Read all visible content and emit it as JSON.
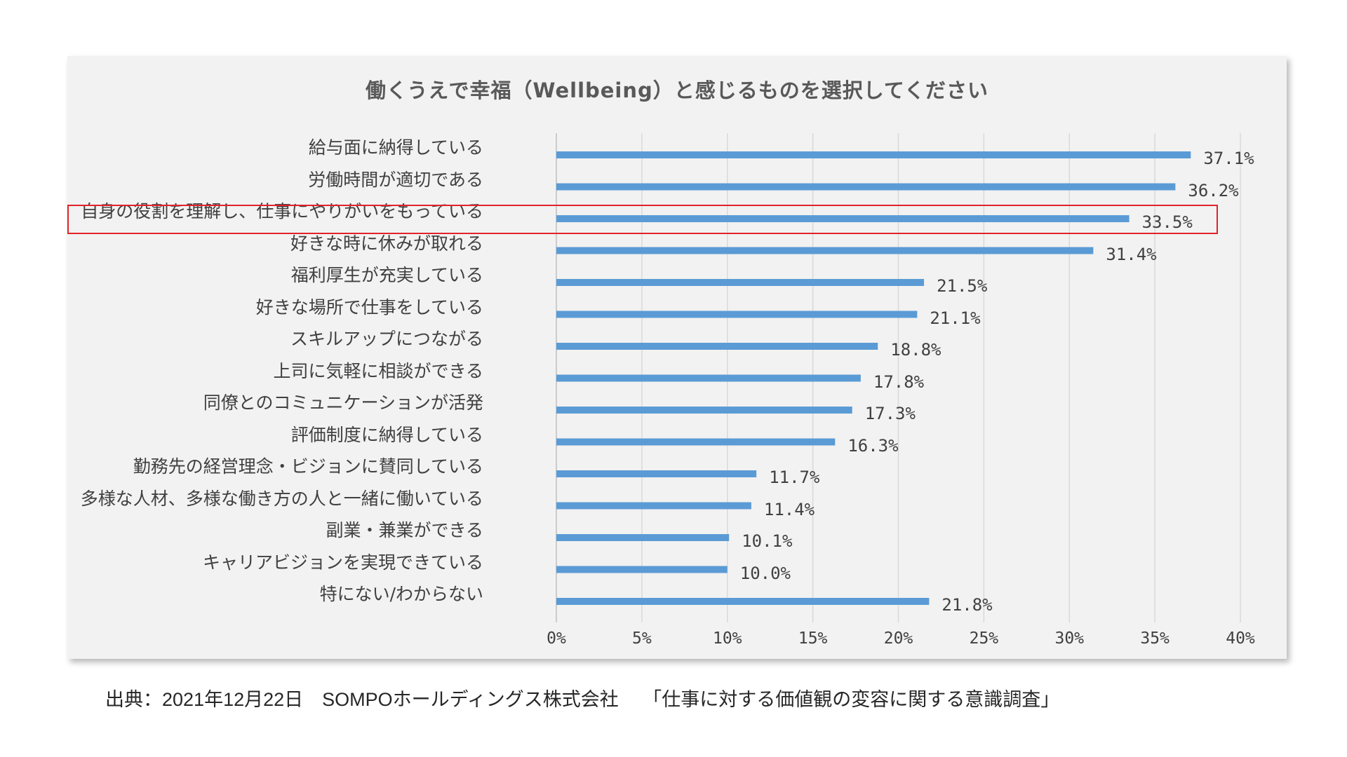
{
  "chart_data": {
    "type": "bar",
    "orientation": "horizontal",
    "title": "働くうえで幸福（Wellbeing）と感じるものを選択してください",
    "categories": [
      "給与面に納得している",
      "労働時間が適切である",
      "自身の役割を理解し、仕事にやりがいをもっている",
      "好きな時に休みが取れる",
      "福利厚生が充実している",
      "好きな場所で仕事をしている",
      "スキルアップにつながる",
      "上司に気軽に相談ができる",
      "同僚とのコミュニケーションが活発",
      "評価制度に納得している",
      "勤務先の経営理念・ビジョンに賛同している",
      "多様な人材、多様な働き方の人と一緒に働いている",
      "副業・兼業ができる",
      "キャリアビジョンを実現できている",
      "特にない/わからない"
    ],
    "values": [
      37.1,
      36.2,
      33.5,
      31.4,
      21.5,
      21.1,
      18.8,
      17.8,
      17.3,
      16.3,
      11.7,
      11.4,
      10.1,
      10.0,
      21.8
    ],
    "value_labels": [
      "37.1%",
      "36.2%",
      "33.5%",
      "31.4%",
      "21.5%",
      "21.1%",
      "18.8%",
      "17.8%",
      "17.3%",
      "16.3%",
      "11.7%",
      "11.4%",
      "10.1%",
      "10.0%",
      "21.8%"
    ],
    "xlim": [
      0,
      40
    ],
    "xticks": [
      0,
      5,
      10,
      15,
      20,
      25,
      30,
      35,
      40
    ],
    "xtick_labels": [
      "0%",
      "5%",
      "10%",
      "15%",
      "20%",
      "25%",
      "30%",
      "35%",
      "40%"
    ],
    "grid": true,
    "highlighted_category_index": 2,
    "bar_color": "#5b9bd5",
    "highlight_color": "#e0242a"
  },
  "source": "出典：2021年12月22日　SOMPOホールディングス株式会社　 「仕事に対する価値観の変容に関する意識調査」"
}
